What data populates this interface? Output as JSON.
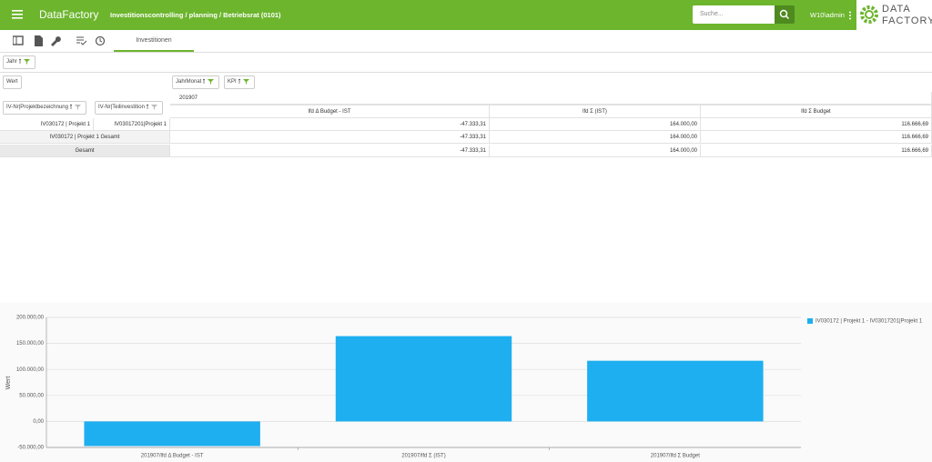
{
  "header": {
    "app_title": "DataFactory",
    "breadcrumb": "Investitionscontrolling / planning / Betriebsrat (0101)",
    "search_placeholder": "Suche...",
    "user": "W10\\admin",
    "logo_line1": "DATA",
    "logo_line2": "FACTORY"
  },
  "toolbar": {
    "tab": "Investitionen"
  },
  "filters": {
    "column_filter": "Jahr",
    "value_field": "Wert",
    "column_fields": [
      "JahrMonat",
      "KPI"
    ],
    "row_fields": [
      "IV-Nr|Projektbezeichnung",
      "IV-Nr|Teilinvestition"
    ]
  },
  "pivot": {
    "column_group": "201907",
    "columns": [
      "lfd Δ Budget - IST",
      "lfd Σ (IST)",
      "lfd Σ Budget"
    ],
    "rows": [
      {
        "labels": [
          "IV030172 | Projekt 1",
          "IV03017201|Projekt 1"
        ],
        "values": [
          "-47.333,31",
          "164.000,00",
          "116.666,69"
        ]
      },
      {
        "labels": [
          "IV030172 | Projekt 1 Gesamt"
        ],
        "values": [
          "-47.333,31",
          "164.000,00",
          "116.666,69"
        ]
      },
      {
        "labels": [
          "Gesamt"
        ],
        "values": [
          "-47.333,31",
          "164.000,00",
          "116.666,69"
        ]
      }
    ]
  },
  "chart_data": {
    "type": "bar",
    "y_label": "Wert",
    "categories": [
      "201907/lfd Δ Budget - IST",
      "201907/lfd Σ (IST)",
      "201907/lfd Σ Budget"
    ],
    "series": [
      {
        "name": "IV030172 | Projekt 1 - IV03017201|Projekt 1",
        "color": "#1eaff0",
        "values": [
          -47333.31,
          164000,
          116666.69
        ]
      }
    ],
    "ylim": [
      -50000,
      200000
    ],
    "yticks": [
      {
        "value": -50000,
        "label": "-50.000,00"
      },
      {
        "value": 0,
        "label": "0,00"
      },
      {
        "value": 50000,
        "label": "50.000,00"
      },
      {
        "value": 100000,
        "label": "100.000,00"
      },
      {
        "value": 150000,
        "label": "150.000,00"
      },
      {
        "value": 200000,
        "label": "200.000,00"
      }
    ],
    "grid": true,
    "legend": "top-right"
  }
}
